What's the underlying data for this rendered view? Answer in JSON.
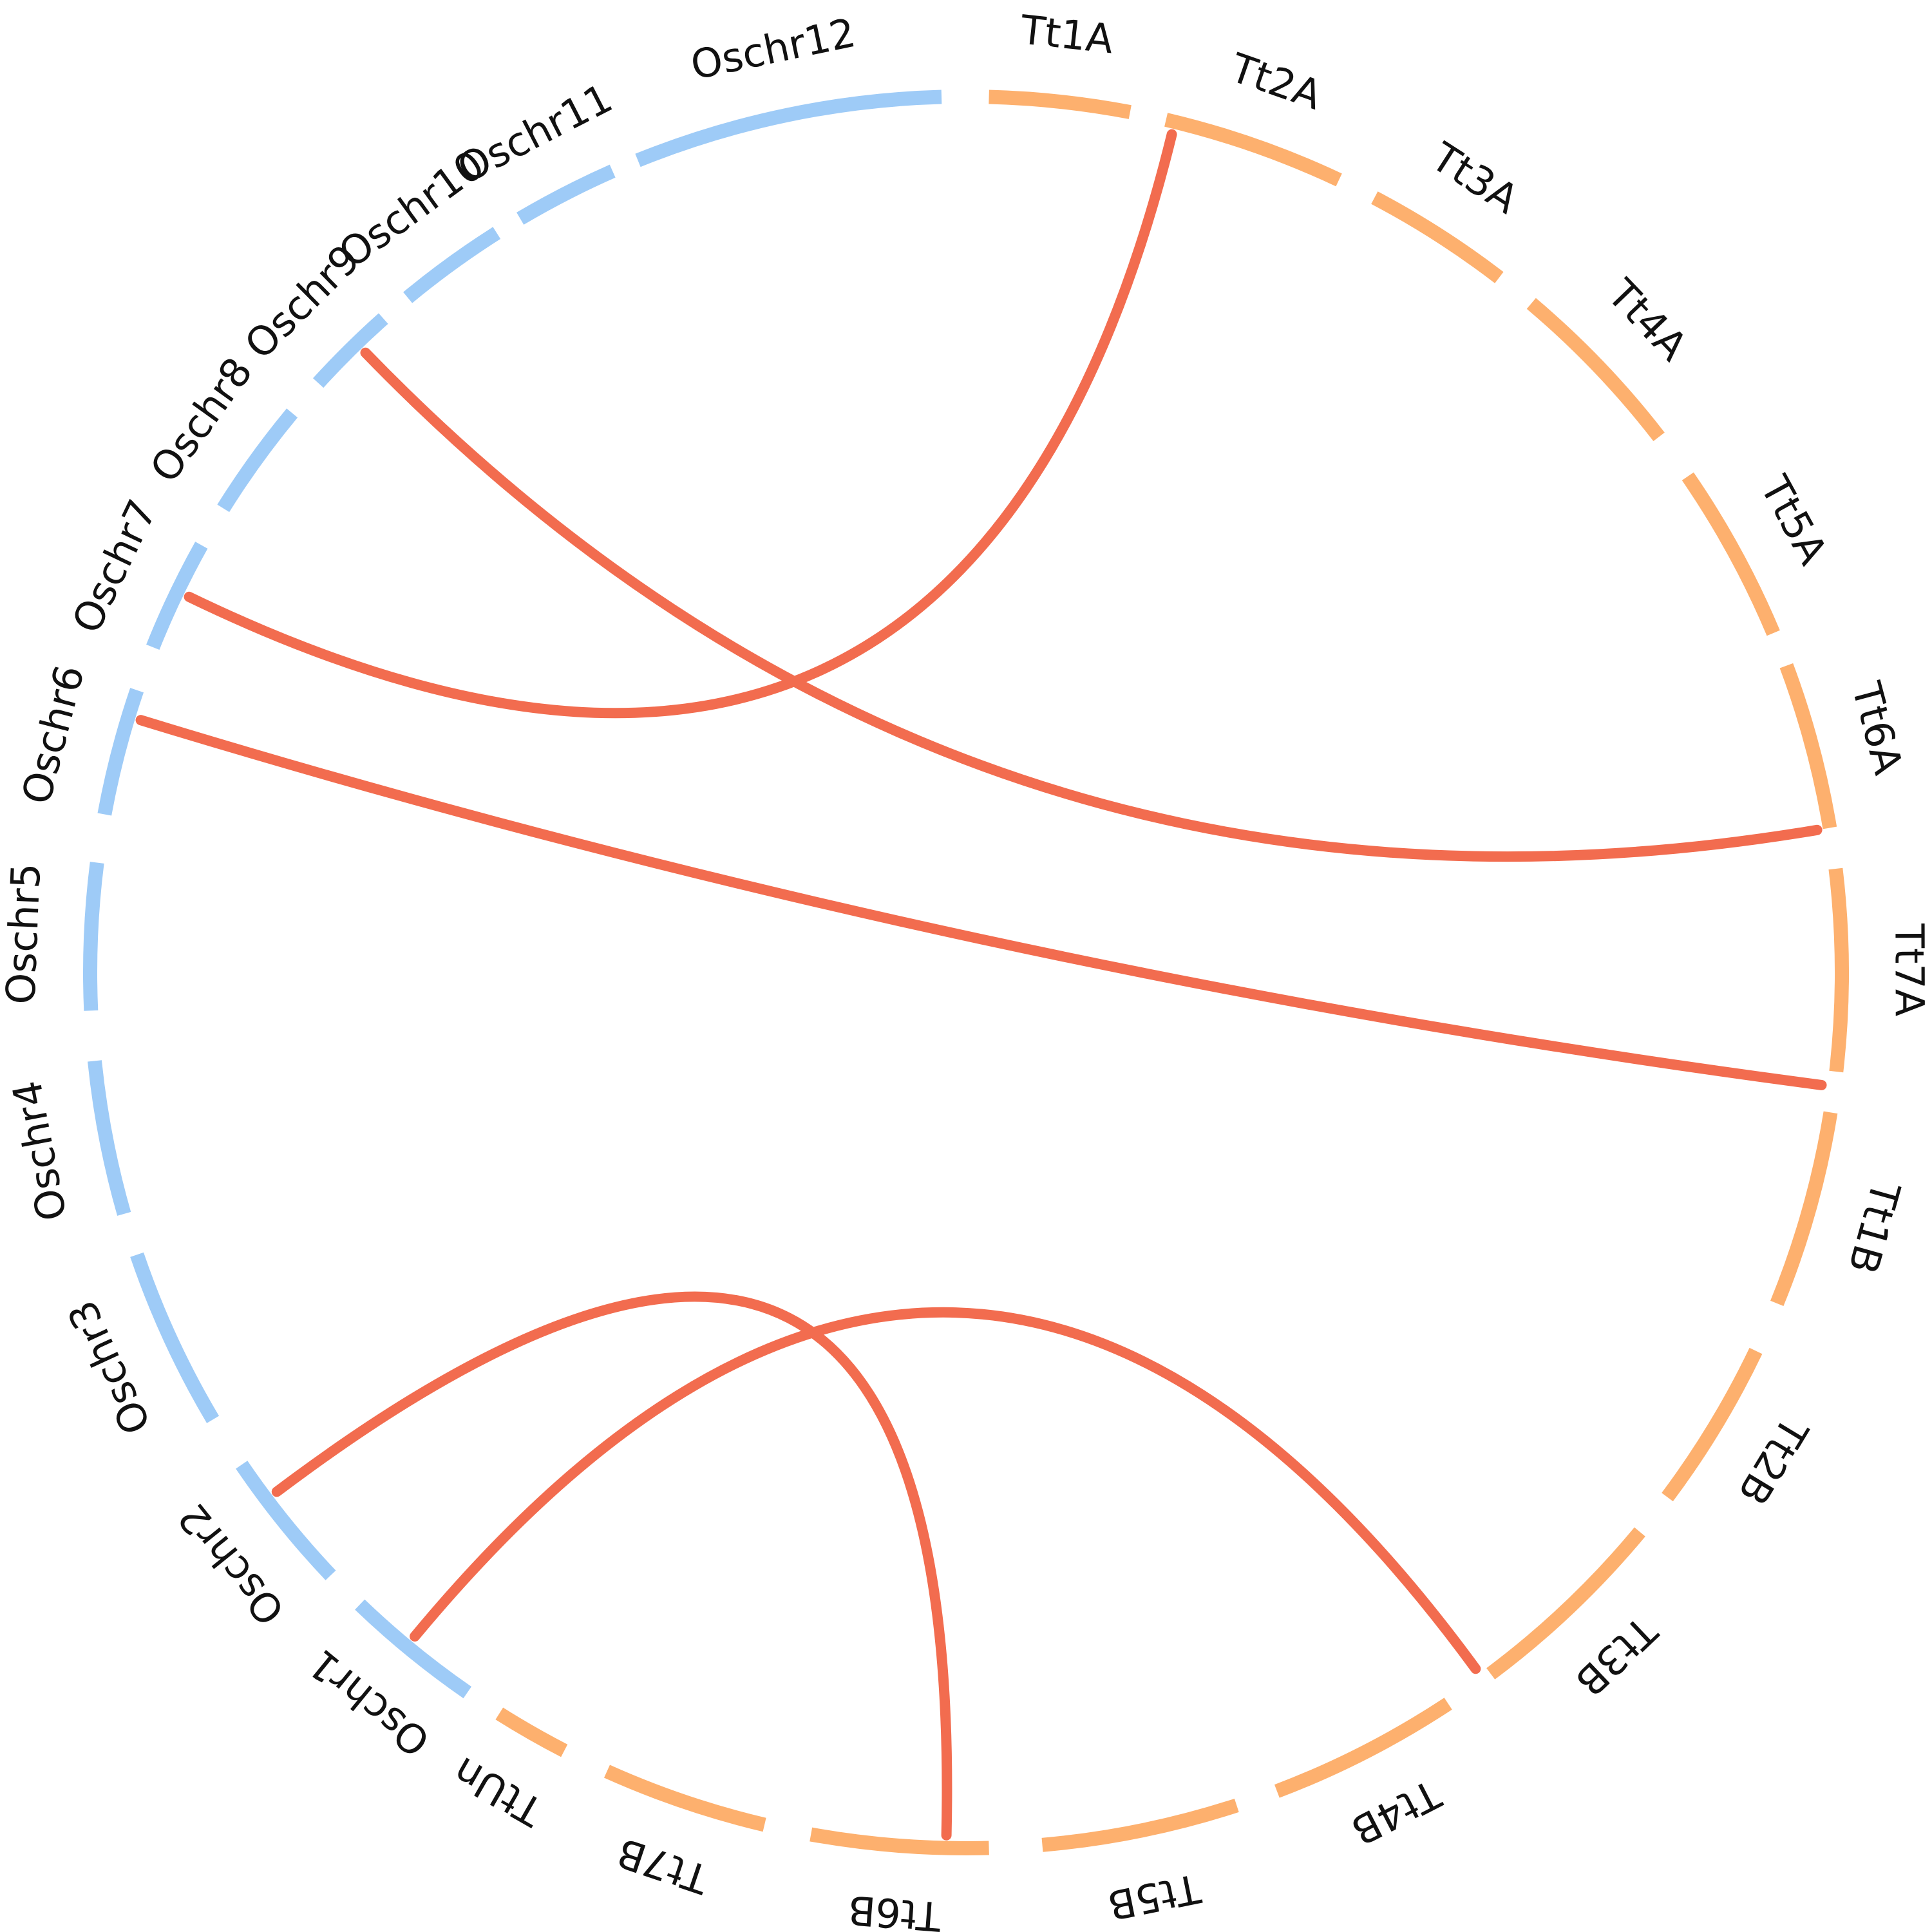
{
  "colors": {
    "oryza": "#9ecbf7",
    "triticum": "#fdb06e",
    "link": "#f26c4f",
    "label": "#111111"
  },
  "chromosomes": [
    {
      "id": "Tt1A",
      "label": "Tt1A",
      "group": "triticum"
    },
    {
      "id": "Tt2A",
      "label": "Tt2A",
      "group": "triticum"
    },
    {
      "id": "Tt3A",
      "label": "Tt3A",
      "group": "triticum"
    },
    {
      "id": "Tt4A",
      "label": "Tt4A",
      "group": "triticum"
    },
    {
      "id": "Tt5A",
      "label": "Tt5A",
      "group": "triticum"
    },
    {
      "id": "Tt6A",
      "label": "Tt6A",
      "group": "triticum"
    },
    {
      "id": "Tt7A",
      "label": "Tt7A",
      "group": "triticum"
    },
    {
      "id": "Tt1B",
      "label": "Tt1B",
      "group": "triticum"
    },
    {
      "id": "Tt2B",
      "label": "Tt2B",
      "group": "triticum"
    },
    {
      "id": "Tt3B",
      "label": "Tt3B",
      "group": "triticum"
    },
    {
      "id": "Tt4B",
      "label": "Tt4B",
      "group": "triticum"
    },
    {
      "id": "Tt5B",
      "label": "Tt5B",
      "group": "triticum"
    },
    {
      "id": "Tt6B",
      "label": "Tt6B",
      "group": "triticum"
    },
    {
      "id": "Tt7B",
      "label": "Tt7B",
      "group": "triticum"
    },
    {
      "id": "TtUn",
      "label": "TtUn",
      "group": "triticum"
    },
    {
      "id": "Oschr1",
      "label": "Oschr1",
      "group": "oryza"
    },
    {
      "id": "Oschr2",
      "label": "Oschr2",
      "group": "oryza"
    },
    {
      "id": "Oschr3",
      "label": "Oschr3",
      "group": "oryza"
    },
    {
      "id": "Oschr4",
      "label": "Oschr4",
      "group": "oryza"
    },
    {
      "id": "Oschr5",
      "label": "Oschr5",
      "group": "oryza"
    },
    {
      "id": "Oschr6",
      "label": "Oschr6",
      "group": "oryza"
    },
    {
      "id": "Oschr7",
      "label": "Oschr7",
      "group": "oryza"
    },
    {
      "id": "Oschr8",
      "label": "Oschr8",
      "group": "oryza"
    },
    {
      "id": "Oschr9",
      "label": "Oschr9",
      "group": "oryza"
    },
    {
      "id": "Oschr10",
      "label": "Oschr10",
      "group": "oryza"
    },
    {
      "id": "Oschr11",
      "label": "Oschr11",
      "group": "oryza"
    },
    {
      "id": "Oschr12",
      "label": "Oschr12",
      "group": "oryza"
    }
  ],
  "links": [
    {
      "from": "Tt2A",
      "to": "Oschr7"
    },
    {
      "from": "Oschr9",
      "to": "Tt6A"
    },
    {
      "from": "Oschr6",
      "to": "Tt7A"
    },
    {
      "from": "Oschr2",
      "to": "Tt6B"
    },
    {
      "from": "Oschr1",
      "to": "Tt3B"
    }
  ]
}
